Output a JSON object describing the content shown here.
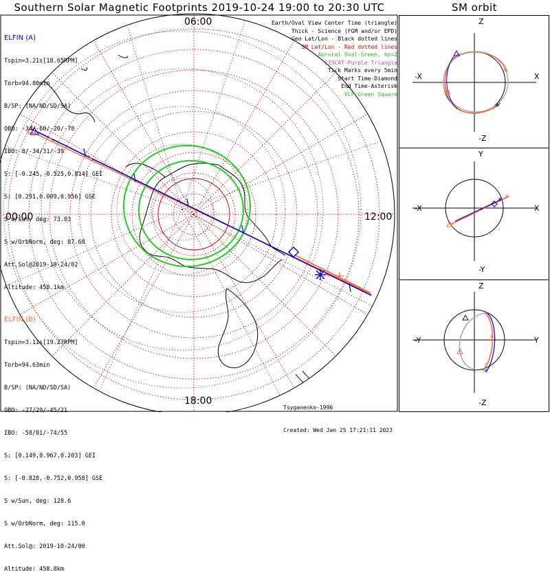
{
  "header": {
    "title": "Southern Solar Magnetic Footprints 2019-10-24 19:00 to 20:30 UTC",
    "sm_title": "SM orbit"
  },
  "probe_a": {
    "name": "ELFIN (A)",
    "lines": [
      "Tspin=3.21s[18.65RPM]",
      "Torb=94.80min",
      "B/SP: (NA/ND/SD/SA)",
      "OBO: -34/-60/-20/-78",
      "IBO: 8/-34/31/-39",
      "S: [-0.245,-0.525,0.814] GEI",
      "S: [0.291,0.009,0.956] GSE",
      "S w/Sun, deg: 73.03",
      "S w/OrbNorm, deg: 87.68",
      "Att.Sol@2019-10-24/02",
      "Altitude: 458.1km"
    ]
  },
  "probe_b": {
    "name": "ELFIN (B)",
    "lines": [
      "Tspin=3.11s[19.27RPM]",
      "Torb=94.63min",
      "B/SP: (NA/ND/SD/SA)",
      "OBO: -27/29/-45/21",
      "IBO: -58/81/-74/55",
      "S: [0.149,0.967,0.203] GEI",
      "S: [-0.828,-0.752,0.958] GSE",
      "S w/Sun, deg: 128.6",
      "S w/OrbNorm, deg: 115.0",
      "Att.Sol@: 2019-10-24/00",
      "Altitude: 458.8km"
    ]
  },
  "legend": [
    {
      "text": "Earth/Oval View Center Time (triangle)",
      "color": "#000000"
    },
    {
      "text": "Thick - Science (FGM and/or EPD)",
      "color": "#000000"
    },
    {
      "text": "Geo Lat/Lon - Black dotted lines",
      "color": "#000000"
    },
    {
      "text": "SM Lat/Lon - Red dotted lines",
      "color": "#e00000"
    },
    {
      "text": "Auroral Oval-Green, kp=2",
      "color": "#22bb22"
    },
    {
      "text": "EISCAT-Purple Triangle",
      "color": "#cc44cc"
    },
    {
      "text": "Tick Marks every 5min",
      "color": "#000000"
    },
    {
      "text": "Start Time-Diamond",
      "color": "#000000"
    },
    {
      "text": "End Time-Asterisk",
      "color": "#000000"
    },
    {
      "text": "VLF-Green Square",
      "color": "#22bb22"
    }
  ],
  "mlt_labels": {
    "top": "06:00",
    "left": "00:00",
    "right": "12:00",
    "bottom": "18:00"
  },
  "footer": {
    "author": "Tsyganenko-1996",
    "created": "Created: Wed Jan 25 17:21:11 2023"
  },
  "sm_panels": [
    {
      "top": "Z",
      "bottom": "-Z",
      "left": "-X",
      "right": "X"
    },
    {
      "top": "Y",
      "bottom": "-Y",
      "left": "-X",
      "right": "X"
    },
    {
      "top": "Z",
      "bottom": "-Z",
      "left": "-Y",
      "right": "Y"
    }
  ],
  "colors": {
    "probe_a": "#0000cc",
    "probe_b": "#ff6633",
    "sm_grid": "#dd0000",
    "oval": "#22cc22",
    "coast": "#000000"
  },
  "chart_data": {
    "type": "polar-map",
    "projection": "southern polar, solar magnetic",
    "mlt_ticks": [
      "00:00",
      "06:00",
      "12:00",
      "18:00"
    ],
    "tracks": [
      {
        "name": "ELFIN (A)",
        "color": "#0000cc"
      },
      {
        "name": "ELFIN (B)",
        "color": "#ff6633"
      }
    ]
  }
}
